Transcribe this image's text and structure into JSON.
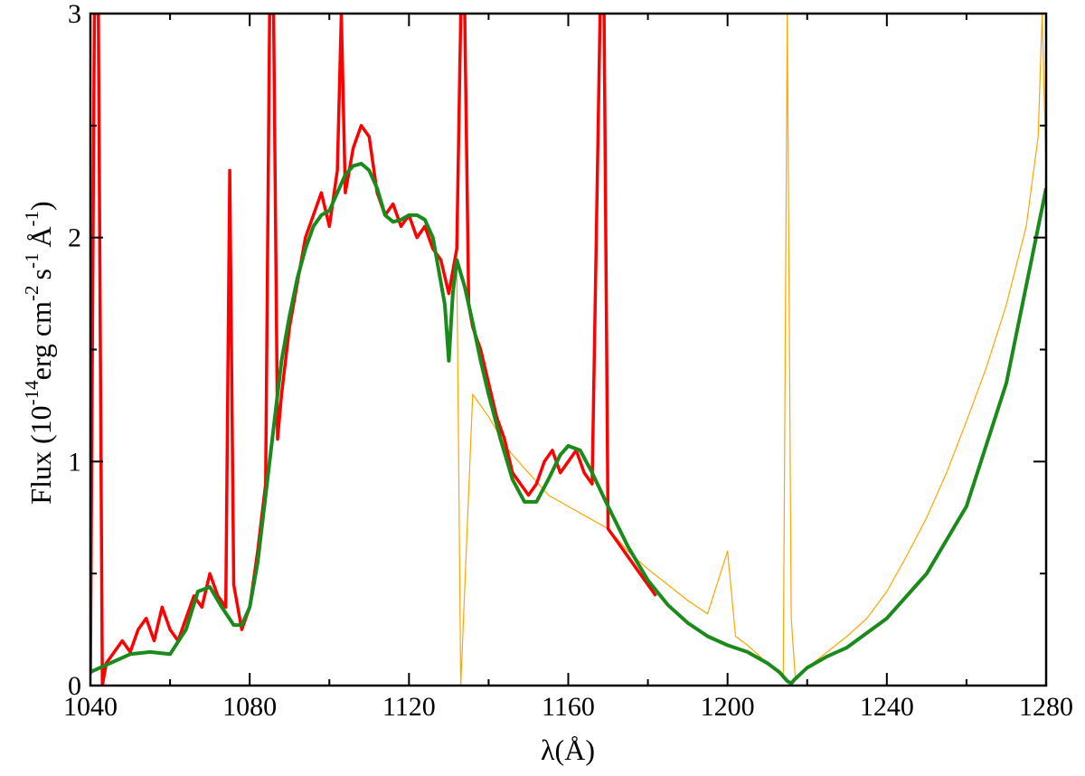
{
  "chart_data": {
    "type": "line",
    "title": "",
    "xlabel": "λ(Å)",
    "ylabel": {
      "text": "Flux (10",
      "exp1": "-14",
      "unit1": "erg cm",
      "exp2": "-2",
      "unit2": "s",
      "exp3": "-1",
      "unit3": "Å",
      "exp4": "-1",
      "close": ")"
    },
    "xlim": [
      1040,
      1280
    ],
    "ylim": [
      0,
      3
    ],
    "xticks": [
      1040,
      1080,
      1120,
      1160,
      1200,
      1240,
      1280
    ],
    "yticks": [
      0,
      1,
      2,
      3
    ],
    "grid": false,
    "legend": "none",
    "series": [
      {
        "color": "#ff0000",
        "style": "noisy spectrum",
        "x": [
          1040,
          1041,
          1042,
          1043,
          1044,
          1046,
          1048,
          1050,
          1052,
          1054,
          1056,
          1058,
          1060,
          1062,
          1064,
          1066,
          1068,
          1070,
          1072,
          1074,
          1075,
          1076,
          1078,
          1080,
          1082,
          1084,
          1085,
          1086,
          1087,
          1088,
          1090,
          1092,
          1094,
          1096,
          1098,
          1100,
          1102,
          1103,
          1104,
          1106,
          1108,
          1110,
          1112,
          1114,
          1116,
          1118,
          1120,
          1122,
          1124,
          1126,
          1128,
          1130,
          1132,
          1133,
          1134,
          1135,
          1136,
          1138,
          1140,
          1142,
          1144,
          1146,
          1148,
          1150,
          1152,
          1154,
          1156,
          1158,
          1160,
          1162,
          1164,
          1166,
          1168,
          1169,
          1170,
          1172,
          1174,
          1176,
          1178,
          1180,
          1182
        ],
        "y": [
          0.05,
          3.0,
          3.0,
          0.0,
          0.1,
          0.15,
          0.2,
          0.15,
          0.25,
          0.3,
          0.2,
          0.35,
          0.25,
          0.2,
          0.3,
          0.4,
          0.35,
          0.5,
          0.4,
          0.35,
          2.3,
          0.45,
          0.25,
          0.35,
          0.6,
          0.9,
          3.0,
          3.0,
          1.1,
          1.3,
          1.6,
          1.8,
          2.0,
          2.1,
          2.2,
          2.05,
          2.3,
          3.0,
          2.2,
          2.4,
          2.5,
          2.45,
          2.2,
          2.1,
          2.15,
          2.05,
          2.1,
          2.0,
          2.05,
          1.95,
          1.9,
          1.75,
          1.95,
          3.0,
          3.0,
          1.7,
          1.6,
          1.5,
          1.35,
          1.2,
          1.1,
          0.95,
          0.9,
          0.85,
          0.9,
          1.0,
          1.05,
          0.95,
          1.0,
          1.05,
          0.95,
          0.9,
          3.0,
          3.0,
          0.7,
          0.65,
          0.6,
          0.55,
          0.5,
          0.45,
          0.4
        ]
      },
      {
        "color": "#ffa500",
        "style": "noisy spectrum",
        "x": [
          1132,
          1133,
          1136,
          1140,
          1145,
          1150,
          1155,
          1160,
          1165,
          1170,
          1175,
          1180,
          1185,
          1190,
          1195,
          1200,
          1202,
          1205,
          1210,
          1214,
          1215,
          1216,
          1217,
          1220,
          1225,
          1230,
          1235,
          1240,
          1245,
          1250,
          1255,
          1260,
          1265,
          1270,
          1275,
          1278,
          1279,
          1280
        ],
        "y": [
          1.9,
          0.0,
          1.3,
          1.2,
          1.05,
          0.95,
          0.85,
          0.8,
          0.75,
          0.7,
          0.6,
          0.52,
          0.45,
          0.38,
          0.32,
          0.6,
          0.22,
          0.18,
          0.1,
          0.05,
          3.0,
          0.3,
          0.04,
          0.08,
          0.15,
          0.22,
          0.3,
          0.42,
          0.58,
          0.75,
          0.95,
          1.18,
          1.42,
          1.7,
          2.05,
          2.45,
          3.0,
          2.3
        ]
      },
      {
        "color": "#1a8a1a",
        "style": "smooth model",
        "x": [
          1040,
          1045,
          1050,
          1055,
          1060,
          1064,
          1067,
          1070,
          1073,
          1076,
          1078,
          1080,
          1082,
          1084,
          1086,
          1088,
          1090,
          1092,
          1094,
          1096,
          1098,
          1100,
          1102,
          1104,
          1106,
          1108,
          1110,
          1112,
          1114,
          1116,
          1118,
          1120,
          1122,
          1124,
          1126,
          1128,
          1129,
          1130,
          1131,
          1132,
          1134,
          1136,
          1138,
          1140,
          1143,
          1146,
          1149,
          1152,
          1155,
          1158,
          1160,
          1163,
          1166,
          1170,
          1175,
          1180,
          1185,
          1190,
          1195,
          1200,
          1205,
          1210,
          1213,
          1215,
          1216,
          1217,
          1220,
          1225,
          1230,
          1240,
          1250,
          1260,
          1270,
          1280
        ],
        "y": [
          0.06,
          0.1,
          0.14,
          0.15,
          0.14,
          0.25,
          0.42,
          0.44,
          0.35,
          0.27,
          0.27,
          0.35,
          0.55,
          0.85,
          1.15,
          1.45,
          1.65,
          1.82,
          1.95,
          2.05,
          2.1,
          2.12,
          2.2,
          2.28,
          2.32,
          2.33,
          2.3,
          2.22,
          2.1,
          2.07,
          2.08,
          2.1,
          2.1,
          2.08,
          2.0,
          1.8,
          1.7,
          1.45,
          1.75,
          1.9,
          1.78,
          1.62,
          1.45,
          1.3,
          1.1,
          0.92,
          0.82,
          0.82,
          0.92,
          1.03,
          1.07,
          1.05,
          0.95,
          0.8,
          0.62,
          0.47,
          0.36,
          0.28,
          0.22,
          0.18,
          0.15,
          0.1,
          0.06,
          0.02,
          0.01,
          0.03,
          0.08,
          0.13,
          0.17,
          0.3,
          0.5,
          0.8,
          1.35,
          2.22
        ]
      }
    ]
  }
}
